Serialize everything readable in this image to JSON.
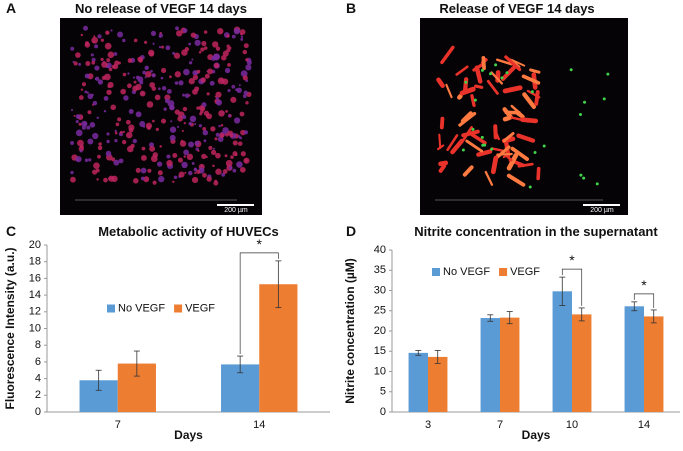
{
  "panels": [
    {
      "label": "A",
      "title": "No release of VEGF 14 days",
      "scale_bar": "200 µm"
    },
    {
      "label": "B",
      "title": "Release of VEGF 14 days",
      "scale_bar": "200 µm"
    }
  ],
  "chart_data": [
    {
      "type": "bar",
      "panel_label": "C",
      "title": "Metabolic activity of HUVECs",
      "x_label": "Days",
      "y_label": "Fluorescence Intensity (a.u.)",
      "categories": [
        "7",
        "14"
      ],
      "series": [
        {
          "name": "No VEGF",
          "color": "#5b9bd5",
          "values": [
            3.8,
            5.7
          ],
          "errors": [
            1.2,
            1.0
          ]
        },
        {
          "name": "VEGF",
          "color": "#ed7d31",
          "values": [
            5.8,
            15.3
          ],
          "errors": [
            1.5,
            2.8
          ]
        }
      ],
      "ylim": [
        0,
        20
      ],
      "yticks": [
        0,
        2,
        4,
        6,
        8,
        10,
        12,
        14,
        16,
        18,
        20
      ],
      "legend": "center-left",
      "annotations": [
        {
          "text": "*",
          "category": "14"
        }
      ]
    },
    {
      "type": "bar",
      "panel_label": "D",
      "title": "Nitrite concentration in the supernatant",
      "x_label": "Days",
      "y_label": "Nitrite concentration (µM)",
      "categories": [
        "3",
        "7",
        "10",
        "14"
      ],
      "series": [
        {
          "name": "No VEGF",
          "color": "#5b9bd5",
          "values": [
            14.6,
            23.2,
            29.8,
            26.1
          ],
          "errors": [
            0.6,
            0.8,
            3.5,
            1.1
          ]
        },
        {
          "name": "VEGF",
          "color": "#ed7d31",
          "values": [
            13.6,
            23.3,
            24.1,
            23.6
          ],
          "errors": [
            1.6,
            1.5,
            1.6,
            1.6
          ]
        }
      ],
      "ylim": [
        0,
        40
      ],
      "yticks": [
        0,
        5,
        10,
        15,
        20,
        25,
        30,
        35,
        40
      ],
      "legend": "upper-left",
      "annotations": [
        {
          "text": "*",
          "category": "10"
        },
        {
          "text": "*",
          "category": "14"
        }
      ]
    }
  ]
}
